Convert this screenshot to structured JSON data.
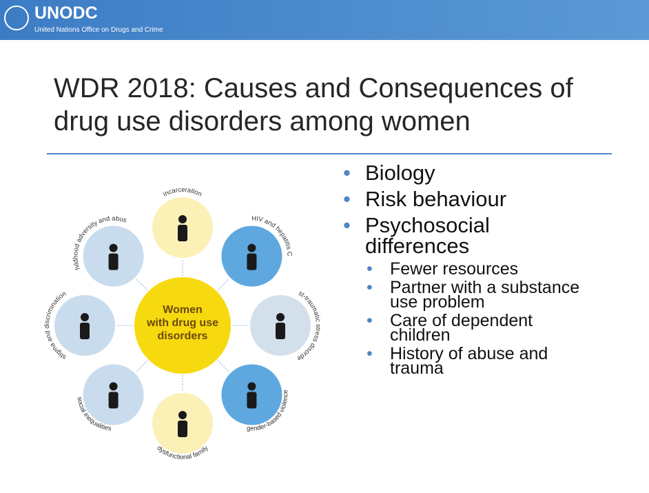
{
  "header": {
    "logo_text": "UNODC",
    "logo_subtitle": "United Nations Office on Drugs and Crime"
  },
  "title": [
    "WDR 2018: Causes and Consequences of",
    "drug use disorders among women"
  ],
  "diagram": {
    "center_label": [
      "Women",
      "with drug use",
      "disorders"
    ],
    "factors": [
      "incarceration",
      "HIV and hepatitis C",
      "post-traumatic stress disorders",
      "gender-based violence",
      "dysfunctional family",
      "social inequalities",
      "stigma and discrimination",
      "childhood adversity and abuse"
    ]
  },
  "bullets": [
    {
      "text": "Biology"
    },
    {
      "text": "Risk behaviour"
    },
    {
      "text": "Psychosocial differences",
      "sub": [
        "Fewer resources",
        "Partner with a substance use problem",
        "Care of dependent children",
        "History of abuse and trauma"
      ]
    }
  ]
}
